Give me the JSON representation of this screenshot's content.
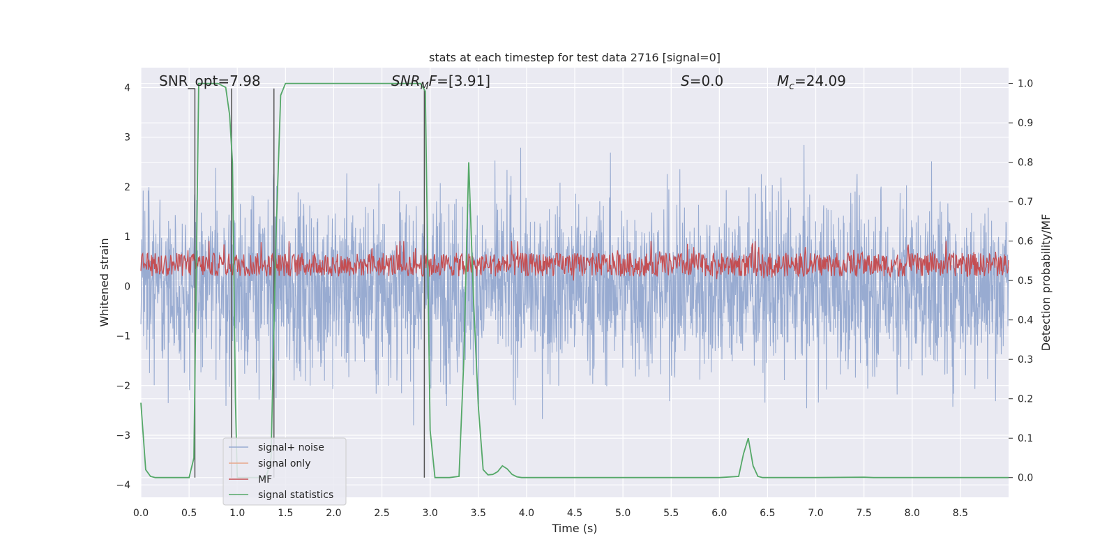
{
  "chart_data": {
    "type": "line",
    "title": "stats at each timestep for test data 2716 [signal=0]",
    "xlabel": "Time (s)",
    "ylabel": "Whitened strain",
    "ylabel_right": "Detection probability/MF",
    "xlim": [
      0.0,
      9.0
    ],
    "ylim": [
      -4.25,
      4.4
    ],
    "ylim_right": [
      -0.05,
      1.04
    ],
    "x_ticks": [
      "0.0",
      "0.5",
      "1.0",
      "1.5",
      "2.0",
      "2.5",
      "3.0",
      "3.5",
      "4.0",
      "4.5",
      "5.0",
      "5.5",
      "6.0",
      "6.5",
      "7.0",
      "7.5",
      "8.0",
      "8.5"
    ],
    "y_ticks": [
      "−4",
      "−3",
      "−2",
      "−1",
      "0",
      "1",
      "2",
      "3",
      "4"
    ],
    "y_ticks_right": [
      "0.0",
      "0.1",
      "0.2",
      "0.3",
      "0.4",
      "0.5",
      "0.6",
      "0.7",
      "0.8",
      "0.9",
      "1.0"
    ],
    "annotations": {
      "snr_opt": "SNR_opt=7.98",
      "snr_mf": "=[3.91]",
      "snr_mf_prefix": "SNR",
      "snr_mf_sub": "M",
      "snr_mf_F": "F",
      "s_value": "=0.0",
      "s_label": "S",
      "mc_value": "=24.09",
      "mc_label": "M",
      "mc_sub": "c"
    },
    "vertical_markers_x": [
      0.56,
      0.94,
      1.38,
      2.94
    ],
    "series": [
      {
        "name": "signal+ noise",
        "color": "#98abd1",
        "description_range": [
          -3.9,
          3.6
        ]
      },
      {
        "name": "signal only",
        "color": "#e8a88a",
        "values": []
      },
      {
        "name": "MF",
        "color": "#c44e52",
        "axis": "right",
        "range": [
          0.5,
          0.6
        ]
      },
      {
        "name": "signal statistics",
        "color": "#55a868",
        "axis": "right",
        "x": [
          0.0,
          0.05,
          0.1,
          0.15,
          0.5,
          0.55,
          0.6,
          0.65,
          0.7,
          0.8,
          0.88,
          0.92,
          0.95,
          0.98,
          1.0,
          1.05,
          1.1,
          1.2,
          1.3,
          1.35,
          1.4,
          1.45,
          1.5,
          1.6,
          1.7,
          2.0,
          2.5,
          2.9,
          2.95,
          3.0,
          3.05,
          3.1,
          3.2,
          3.3,
          3.35,
          3.4,
          3.45,
          3.5,
          3.55,
          3.6,
          3.65,
          3.7,
          3.75,
          3.8,
          3.85,
          3.9,
          3.95,
          4.0,
          5.0,
          6.0,
          6.2,
          6.25,
          6.3,
          6.35,
          6.4,
          6.45,
          6.5,
          7.0,
          7.5,
          7.6,
          8.0,
          9.0
        ],
        "values": [
          0.19,
          0.02,
          0.003,
          0.0,
          0.0,
          0.05,
          1.0,
          1.0,
          1.0,
          1.0,
          0.99,
          0.92,
          0.8,
          0.2,
          0.0,
          0.0,
          0.0,
          0.0,
          0.0,
          0.05,
          0.6,
          0.97,
          1.0,
          1.0,
          1.0,
          1.0,
          1.0,
          1.0,
          0.98,
          0.12,
          0.0,
          0.0,
          0.0,
          0.003,
          0.3,
          0.8,
          0.45,
          0.18,
          0.02,
          0.007,
          0.008,
          0.015,
          0.03,
          0.022,
          0.008,
          0.002,
          0.0,
          0.0,
          0.0,
          0.0,
          0.003,
          0.06,
          0.1,
          0.03,
          0.003,
          0.0,
          0.0,
          0.0,
          0.001,
          0.0,
          0.0,
          0.0
        ]
      }
    ],
    "legend": {
      "placement": "lower-left",
      "entries": [
        "signal+ noise",
        "signal only",
        "MF",
        "signal statistics"
      ]
    },
    "grid": true,
    "background": "#eaeaf2"
  }
}
